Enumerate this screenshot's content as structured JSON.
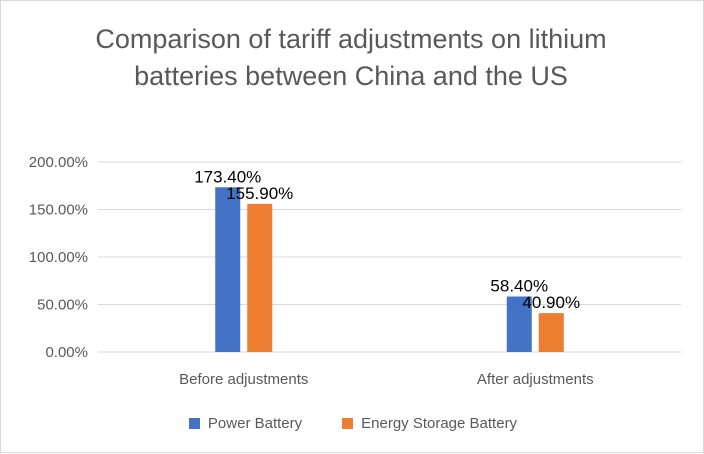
{
  "chart_data": {
    "type": "bar",
    "title": "Comparison of tariff adjustments on lithium batteries between China and the US",
    "categories": [
      "Before adjustments",
      "After adjustments"
    ],
    "series": [
      {
        "name": "Power Battery",
        "color": "#4472c4",
        "values": [
          173.4,
          58.4
        ],
        "labels": [
          "173.40%",
          "58.40%"
        ]
      },
      {
        "name": "Energy Storage Battery",
        "color": "#ed7d31",
        "values": [
          155.9,
          40.9
        ],
        "labels": [
          "155.90%",
          "40.90%"
        ]
      }
    ],
    "ylim": [
      0,
      200
    ],
    "yticks": [
      0,
      50,
      100,
      150,
      200
    ],
    "ytick_labels": [
      "0.00%",
      "50.00%",
      "100.00%",
      "150.00%",
      "200.00%"
    ],
    "grid": true,
    "legend_position": "bottom",
    "xlabel": "",
    "ylabel": ""
  }
}
